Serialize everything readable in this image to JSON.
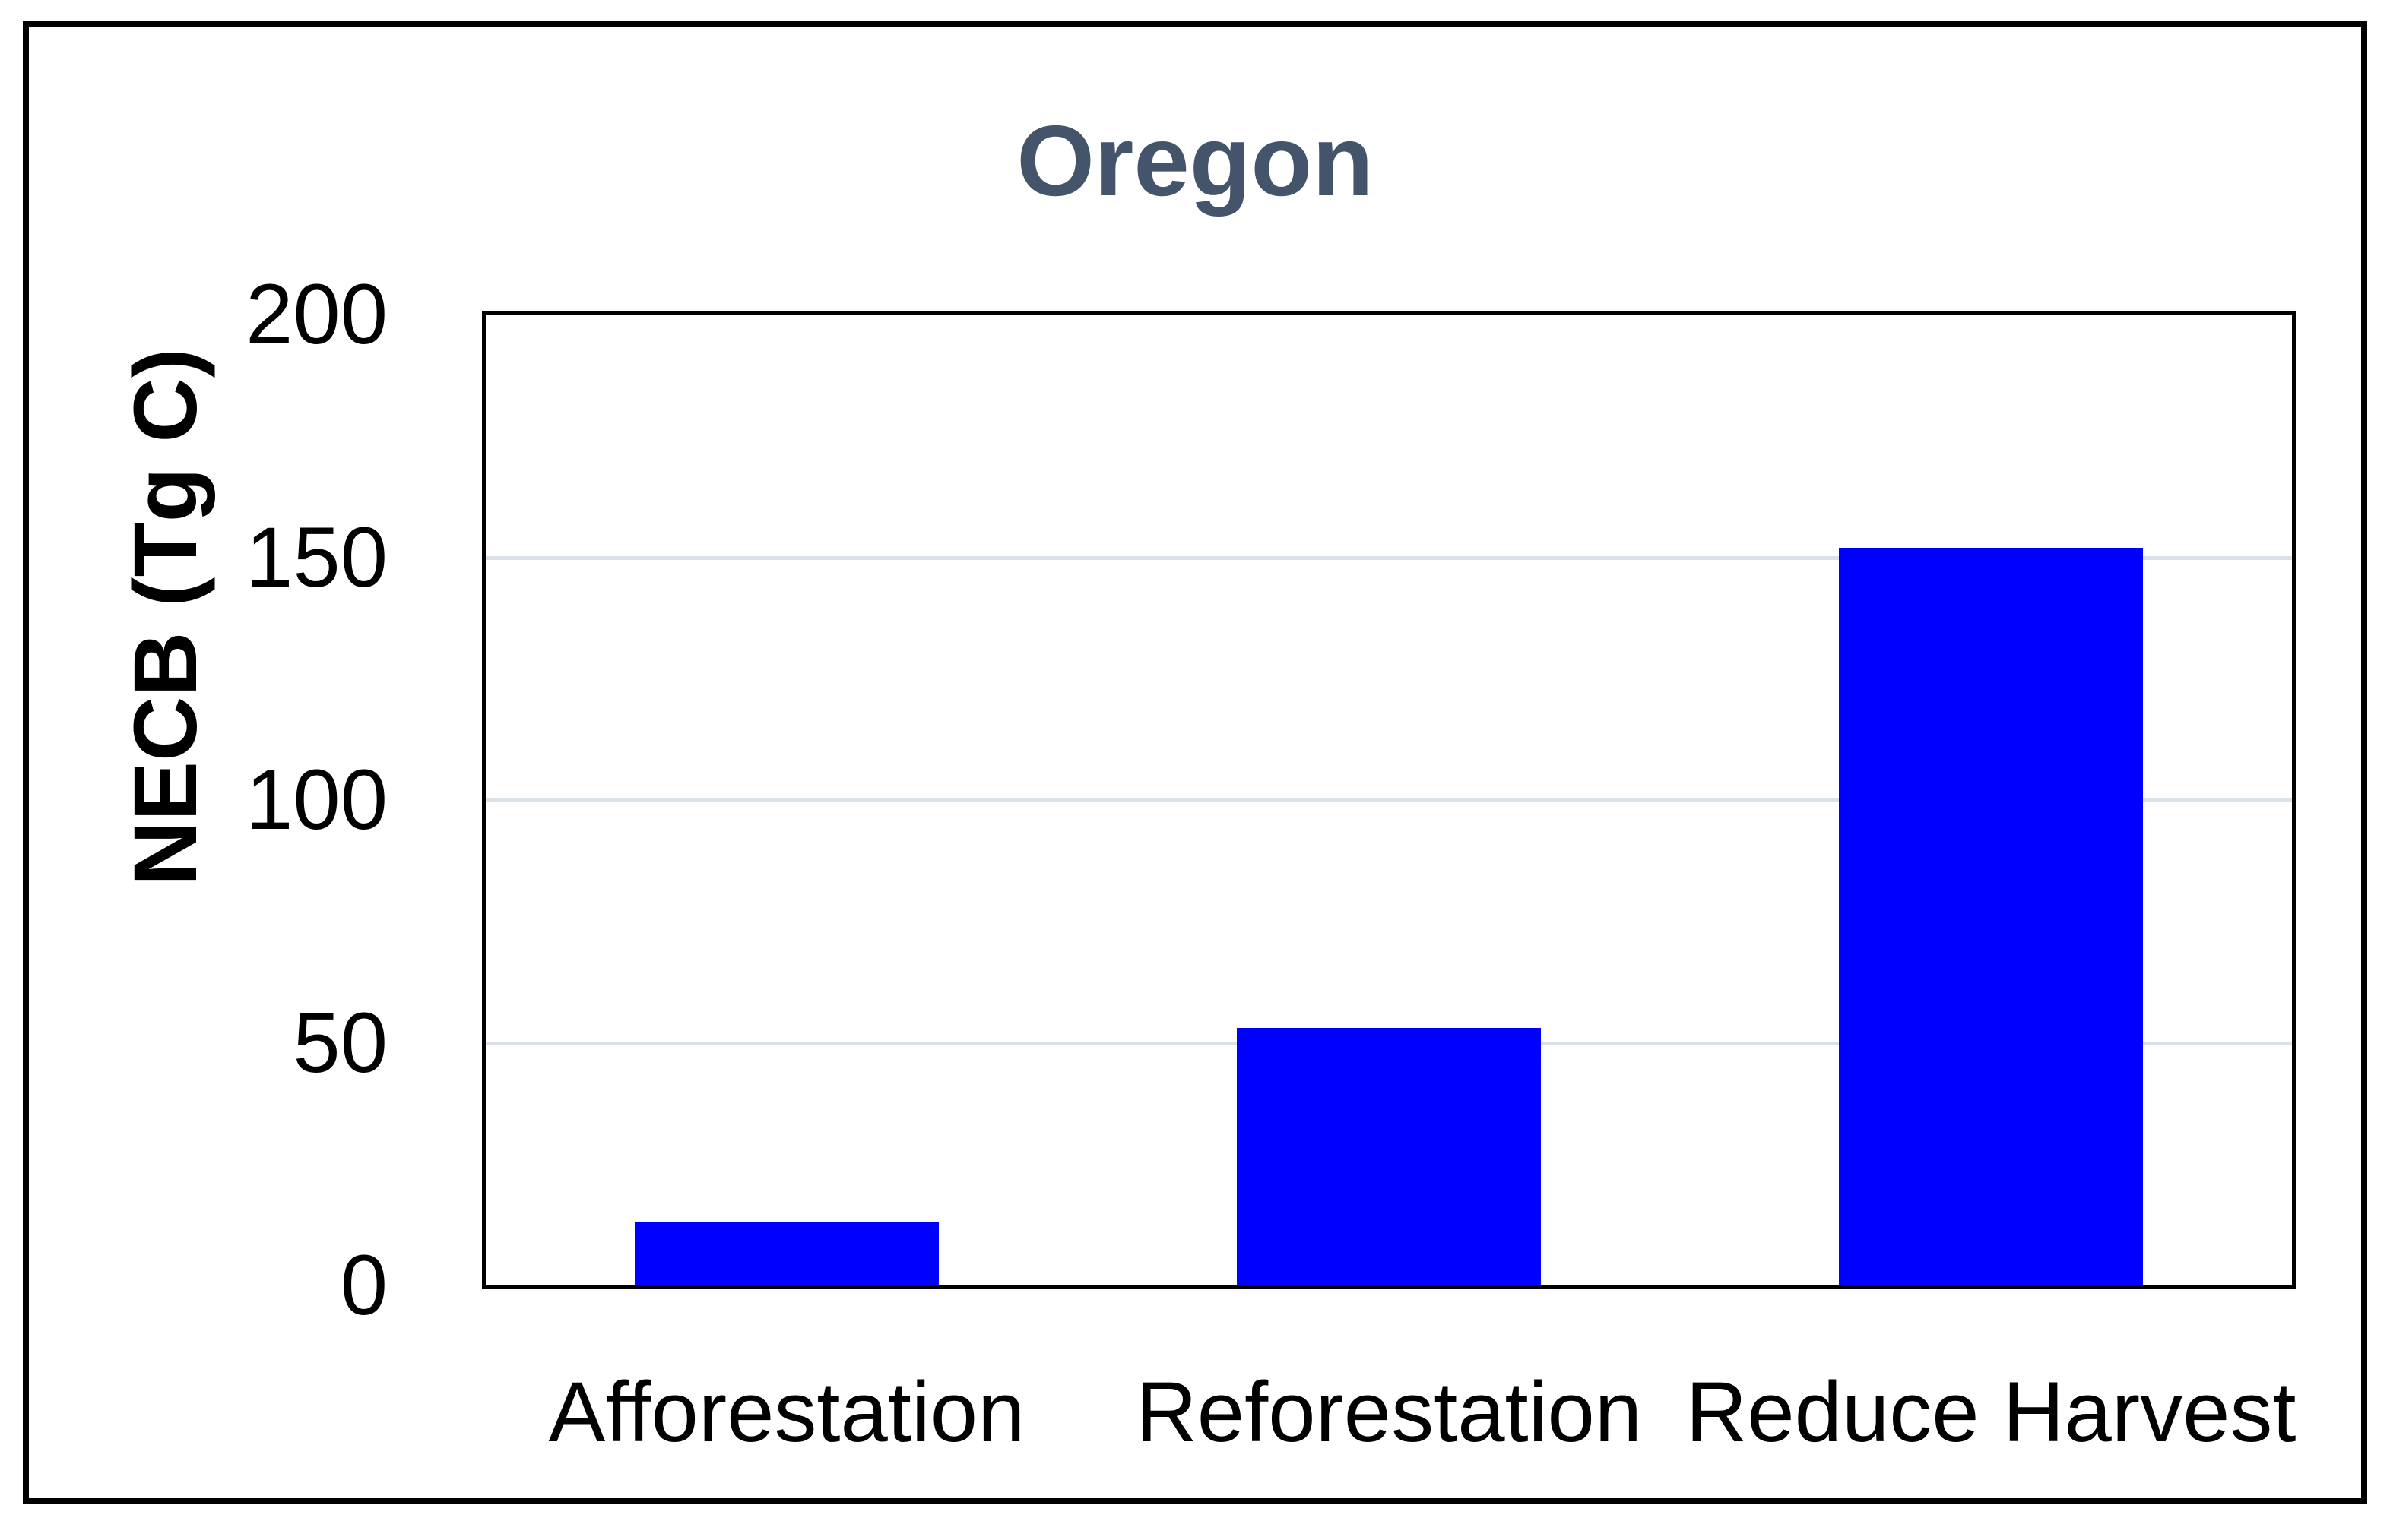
{
  "chart_data": {
    "type": "bar",
    "title": "Oregon",
    "categories": [
      "Afforestation",
      "Reforestation",
      "Reduce Harvest"
    ],
    "values": [
      13,
      53,
      152
    ],
    "xlabel": "",
    "ylabel": "NECB (Tg C)",
    "ylim": [
      0,
      200
    ],
    "yticks": [
      0,
      50,
      100,
      150,
      200
    ],
    "gridlines_at": [
      50,
      100,
      150
    ],
    "grid": "horizontal",
    "legend": "none",
    "bar_color": "#0000FF",
    "title_color": "#44546A",
    "gridline_color": "#DBE1E8",
    "axis_line_color": "#000000",
    "axis_text_color": "#000000"
  }
}
